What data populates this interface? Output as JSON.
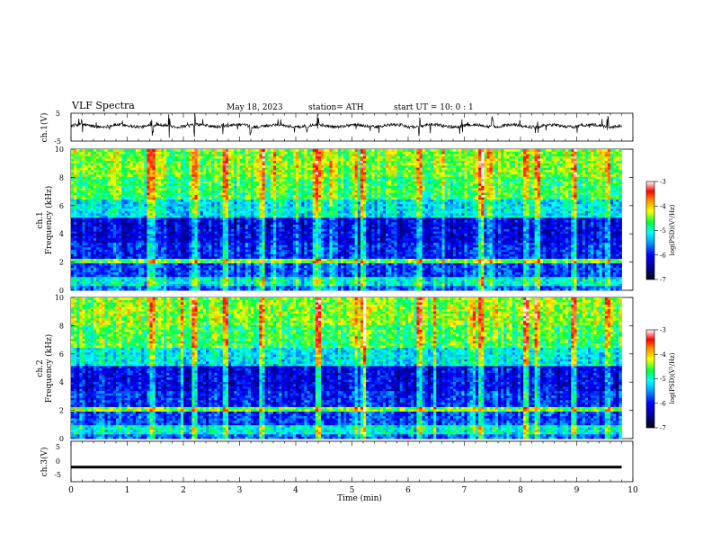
{
  "header": {
    "title": "VLF  Spectra",
    "date": "May 18, 2023",
    "station": "station= ATH",
    "start_ut": "start  UT  =    10: 0   : 1"
  },
  "chart_data": [
    {
      "id": "ch1-waveform",
      "type": "line",
      "ylabel": "ch.1(V)",
      "ylim": [
        -5,
        5
      ],
      "yticks": [
        "5",
        "-5"
      ],
      "xlim": [
        0,
        10
      ],
      "color": "#000000",
      "baseline": 0.5,
      "noise_amplitude": 1.1,
      "spikes_approx_min": [
        0.2,
        1.45,
        1.75,
        2.2,
        2.7,
        3.2,
        4.2,
        4.4,
        6.2,
        7.5,
        8.3,
        9.55
      ]
    },
    {
      "id": "ch1-spectrogram",
      "type": "heatmap",
      "ylabel_line1": "ch.1",
      "ylabel_line2": "Frequency (kHz)",
      "ylim": [
        0,
        10
      ],
      "yticks": [
        "0",
        "2",
        "4",
        "6",
        "8",
        "10"
      ],
      "xlim": [
        0,
        9.8
      ],
      "colorbar": {
        "label": "log(PSD)(V²/Hz)",
        "range": [
          -7,
          -3
        ],
        "ticks": [
          "-3",
          "-4",
          "-5",
          "-6",
          "-7"
        ]
      },
      "bright_events_min": [
        1.45,
        2.2,
        2.75,
        3.4,
        4.4,
        5.2,
        6.2,
        7.3,
        8.1,
        8.3,
        8.95,
        9.55
      ]
    },
    {
      "id": "ch2-spectrogram",
      "type": "heatmap",
      "ylabel_line1": "ch.2",
      "ylabel_line2": "Frequency (kHz)",
      "ylim": [
        0,
        10
      ],
      "yticks": [
        "0",
        "2",
        "4",
        "6",
        "8",
        "10"
      ],
      "xlim": [
        0,
        9.8
      ],
      "colorbar": {
        "label": "log(PSD)(V²/Hz)",
        "range": [
          -7,
          -3
        ],
        "ticks": [
          "-3",
          "-4",
          "-5",
          "-6",
          "-7"
        ]
      },
      "bright_events_min": [
        1.45,
        2.2,
        2.75,
        3.4,
        4.4,
        5.2,
        6.2,
        7.3,
        8.1,
        8.3,
        8.95,
        9.55
      ]
    },
    {
      "id": "ch3-waveform",
      "type": "line",
      "ylabel": "ch.3(V)",
      "ylim": [
        -5,
        5
      ],
      "yticks": [
        "5",
        "0",
        "-5"
      ],
      "xlim": [
        0,
        10
      ],
      "color": "#000000",
      "baseline": -1.8
    }
  ],
  "xaxis": {
    "label": "Time  (min)",
    "ticks": [
      "0",
      "1",
      "2",
      "3",
      "4",
      "5",
      "6",
      "7",
      "8",
      "9",
      "10"
    ]
  }
}
